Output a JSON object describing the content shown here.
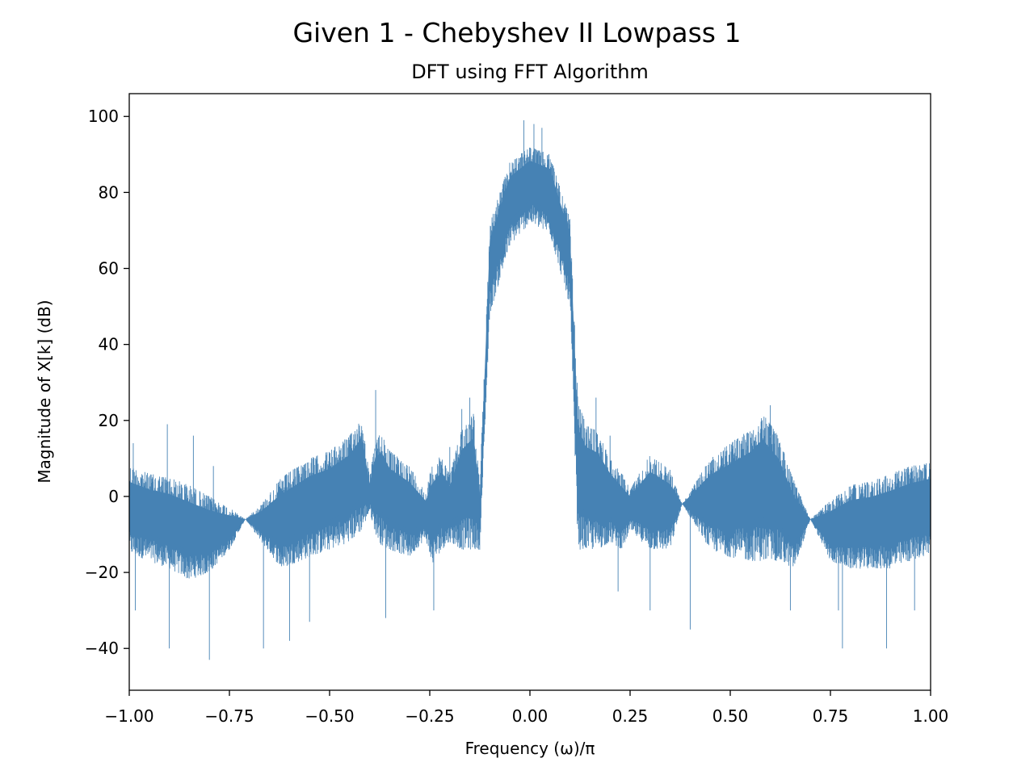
{
  "chart_data": {
    "type": "line",
    "title": "Given 1 - Chebyshev II Lowpass 1",
    "subtitle": "DFT using FFT Algorithm",
    "xlabel": "Frequency (ω)/π",
    "ylabel": "Magnitude of X[k] (dB)",
    "xlim": [
      -1.0,
      1.0
    ],
    "ylim": [
      -51,
      106
    ],
    "xticks": [
      -1.0,
      -0.75,
      -0.5,
      -0.25,
      0.0,
      0.25,
      0.5,
      0.75,
      1.0
    ],
    "xtick_labels": [
      "−1.00",
      "−0.75",
      "−0.50",
      "−0.25",
      "0.00",
      "0.25",
      "0.50",
      "0.75",
      "1.00"
    ],
    "yticks": [
      -40,
      -20,
      0,
      20,
      40,
      60,
      80,
      100
    ],
    "ytick_labels": [
      "−40",
      "−20",
      "0",
      "20",
      "40",
      "60",
      "80",
      "100"
    ],
    "grid": false,
    "legend": "none",
    "series": [
      {
        "color": "#4682b4",
        "envelope": {
          "x": [
            -1.0,
            -0.95,
            -0.9,
            -0.85,
            -0.8,
            -0.75,
            -0.71,
            -0.67,
            -0.62,
            -0.55,
            -0.5,
            -0.45,
            -0.42,
            -0.4,
            -0.385,
            -0.37,
            -0.35,
            -0.3,
            -0.26,
            -0.245,
            -0.22,
            -0.2,
            -0.17,
            -0.14,
            -0.125,
            -0.1,
            -0.05,
            0.0,
            0.05,
            0.1,
            0.12,
            0.14,
            0.17,
            0.2,
            0.23,
            0.25,
            0.3,
            0.35,
            0.38,
            0.45,
            0.5,
            0.55,
            0.58,
            0.62,
            0.66,
            0.7,
            0.75,
            0.8,
            0.85,
            0.9,
            0.95,
            1.0
          ],
          "upper": [
            8,
            6,
            5,
            3,
            0,
            -3,
            -6,
            -2,
            5,
            10,
            12,
            16,
            21,
            5,
            15,
            17,
            12,
            8,
            1,
            8,
            11,
            6,
            18,
            22,
            3,
            72,
            88,
            92,
            90,
            73,
            25,
            19,
            17,
            10,
            6,
            2,
            11,
            7,
            -2,
            10,
            14,
            18,
            22,
            16,
            4,
            -6,
            -1,
            3,
            4,
            6,
            8,
            9
          ],
          "lower": [
            -15,
            -17,
            -19,
            -22,
            -20,
            -14,
            -6,
            -12,
            -19,
            -16,
            -14,
            -12,
            -9,
            -4,
            -10,
            -13,
            -14,
            -16,
            -11,
            -18,
            -14,
            -12,
            -14,
            -14,
            -14,
            48,
            66,
            72,
            69,
            50,
            -14,
            -14,
            -14,
            -12,
            -14,
            -9,
            -14,
            -14,
            -2,
            -14,
            -16,
            -17,
            -17,
            -17,
            -19,
            -6,
            -17,
            -19,
            -19,
            -19,
            -17,
            -15
          ]
        },
        "spikes": [
          {
            "x": -0.99,
            "y": 14
          },
          {
            "x": -0.985,
            "y": -30
          },
          {
            "x": -0.905,
            "y": 19
          },
          {
            "x": -0.9,
            "y": -40
          },
          {
            "x": -0.84,
            "y": 16
          },
          {
            "x": -0.8,
            "y": -43
          },
          {
            "x": -0.79,
            "y": 8
          },
          {
            "x": -0.665,
            "y": -40
          },
          {
            "x": -0.6,
            "y": -38
          },
          {
            "x": -0.55,
            "y": -33
          },
          {
            "x": -0.385,
            "y": 28
          },
          {
            "x": -0.36,
            "y": -32
          },
          {
            "x": -0.24,
            "y": -30
          },
          {
            "x": -0.2,
            "y": 13
          },
          {
            "x": -0.17,
            "y": 23
          },
          {
            "x": -0.15,
            "y": 26
          },
          {
            "x": -0.015,
            "y": 99
          },
          {
            "x": 0.01,
            "y": 98
          },
          {
            "x": 0.03,
            "y": 97
          },
          {
            "x": 0.165,
            "y": 26
          },
          {
            "x": 0.2,
            "y": 16
          },
          {
            "x": 0.22,
            "y": -25
          },
          {
            "x": 0.3,
            "y": -30
          },
          {
            "x": 0.4,
            "y": -35
          },
          {
            "x": 0.6,
            "y": 24
          },
          {
            "x": 0.65,
            "y": -30
          },
          {
            "x": 0.77,
            "y": -30
          },
          {
            "x": 0.78,
            "y": -40
          },
          {
            "x": 0.89,
            "y": -40
          },
          {
            "x": 0.96,
            "y": -30
          },
          {
            "x": 1.0,
            "y": 12
          }
        ]
      }
    ]
  }
}
